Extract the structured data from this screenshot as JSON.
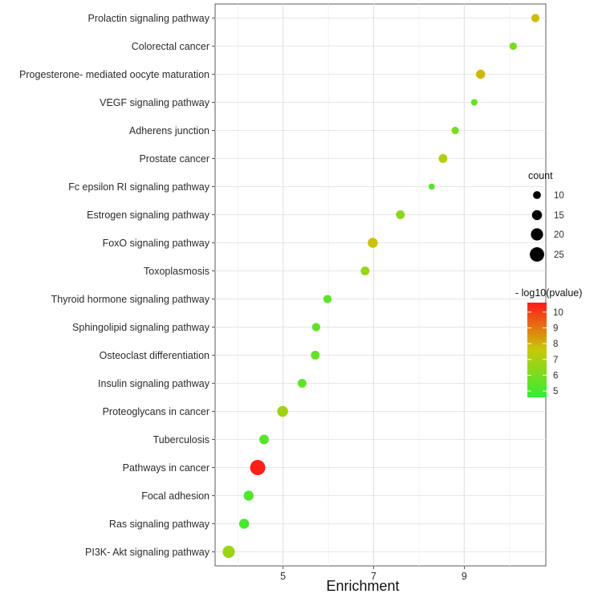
{
  "chart_data": {
    "type": "scatter",
    "title": "",
    "xlabel": "Enrichment",
    "ylabel": "",
    "xlim": [
      3.5,
      10.8
    ],
    "xticks": [
      5,
      7,
      9
    ],
    "grid": true,
    "categories": [
      "Prolactin signaling pathway",
      "Colorectal cancer",
      "Progesterone- mediated oocyte maturation",
      "VEGF signaling pathway",
      "Adherens junction",
      "Prostate cancer",
      "Fc epsilon RI signaling pathway",
      "Estrogen signaling pathway",
      "FoxO signaling pathway",
      "Toxoplasmosis",
      "Thyroid hormone signaling pathway",
      "Sphingolipid signaling pathway",
      "Osteoclast differentiation",
      "Insulin signaling pathway",
      "Proteoglycans in cancer",
      "Tuberculosis",
      "Pathways in cancer",
      "Focal adhesion",
      "Ras signaling pathway",
      "PI3K- Akt signaling pathway"
    ],
    "points": [
      {
        "term": "Prolactin signaling pathway",
        "enrichment": 10.57,
        "count": 11,
        "neg_log10_pvalue": 7.8
      },
      {
        "term": "Colorectal cancer",
        "enrichment": 10.08,
        "count": 9,
        "neg_log10_pvalue": 6.0
      },
      {
        "term": "Progesterone- mediated oocyte maturation",
        "enrichment": 9.36,
        "count": 13,
        "neg_log10_pvalue": 7.9
      },
      {
        "term": "VEGF signaling pathway",
        "enrichment": 9.22,
        "count": 7,
        "neg_log10_pvalue": 5.6
      },
      {
        "term": "Adherens junction",
        "enrichment": 8.8,
        "count": 9,
        "neg_log10_pvalue": 5.9
      },
      {
        "term": "Prostate cancer",
        "enrichment": 8.53,
        "count": 12,
        "neg_log10_pvalue": 7.2
      },
      {
        "term": "Fc epsilon RI signaling pathway",
        "enrichment": 8.28,
        "count": 6,
        "neg_log10_pvalue": 5.3
      },
      {
        "term": "Estrogen signaling pathway",
        "enrichment": 7.59,
        "count": 12,
        "neg_log10_pvalue": 6.4
      },
      {
        "term": "FoxO signaling pathway",
        "enrichment": 6.98,
        "count": 15,
        "neg_log10_pvalue": 7.7
      },
      {
        "term": "Toxoplasmosis",
        "enrichment": 6.81,
        "count": 12,
        "neg_log10_pvalue": 6.6
      },
      {
        "term": "Thyroid hormone signaling pathway",
        "enrichment": 5.98,
        "count": 11,
        "neg_log10_pvalue": 5.4
      },
      {
        "term": "Sphingolipid signaling pathway",
        "enrichment": 5.73,
        "count": 11,
        "neg_log10_pvalue": 5.5
      },
      {
        "term": "Osteoclast differentiation",
        "enrichment": 5.71,
        "count": 12,
        "neg_log10_pvalue": 5.6
      },
      {
        "term": "Insulin signaling pathway",
        "enrichment": 5.42,
        "count": 12,
        "neg_log10_pvalue": 5.5
      },
      {
        "term": "Proteoglycans in cancer",
        "enrichment": 4.99,
        "count": 17,
        "neg_log10_pvalue": 6.8
      },
      {
        "term": "Tuberculosis",
        "enrichment": 4.58,
        "count": 14,
        "neg_log10_pvalue": 5.3
      },
      {
        "term": "Pathways in cancer",
        "enrichment": 4.44,
        "count": 27,
        "neg_log10_pvalue": 10.5
      },
      {
        "term": "Focal adhesion",
        "enrichment": 4.24,
        "count": 15,
        "neg_log10_pvalue": 5.2
      },
      {
        "term": "Ras signaling pathway",
        "enrichment": 4.14,
        "count": 15,
        "neg_log10_pvalue": 5.0
      },
      {
        "term": "PI3K- Akt signaling pathway",
        "enrichment": 3.8,
        "count": 20,
        "neg_log10_pvalue": 6.7
      }
    ],
    "size_legend": {
      "title": "count",
      "values": [
        10,
        15,
        20,
        25
      ],
      "labels": [
        "10",
        "15",
        "20",
        "25"
      ]
    },
    "color_legend": {
      "title": "- log10(pvalue)",
      "range": [
        4.6,
        10.6
      ],
      "ticks": [
        5,
        6,
        7,
        8,
        9,
        10
      ],
      "tick_labels": [
        "5",
        "6",
        "7",
        "8",
        "9",
        "10"
      ],
      "colors": [
        "#33ee33",
        "#c8c80a",
        "#ff1a1a"
      ]
    },
    "xtick_labels": [
      "5",
      "7",
      "9"
    ]
  }
}
